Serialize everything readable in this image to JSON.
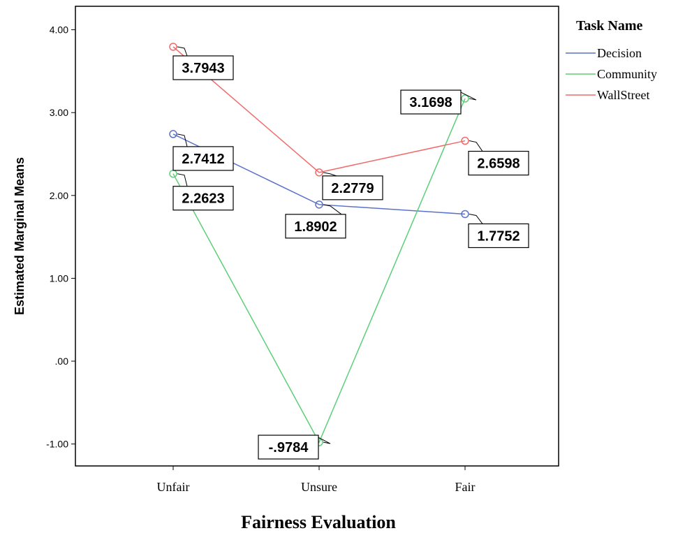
{
  "chart_data": {
    "type": "line",
    "title": "",
    "xlabel": "Fairness Evaluation",
    "ylabel": "Estimated Marginal Means",
    "categories": [
      "Unfair",
      "Unsure",
      "Fair"
    ],
    "ylim": [
      -1.3,
      4.3
    ],
    "yticks": [
      -1.0,
      0.0,
      1.0,
      2.0,
      3.0,
      4.0
    ],
    "ytick_labels": [
      "-1.00",
      ".00",
      "1.00",
      "2.00",
      "3.00",
      "4.00"
    ],
    "grid": false,
    "legend": {
      "title": "Task Name",
      "placement": "right"
    },
    "series": [
      {
        "name": "Decision",
        "color": "#5b72c9",
        "values": [
          2.7412,
          1.8902,
          1.7752
        ],
        "labels": [
          "2.7412",
          "1.8902",
          "1.7752"
        ]
      },
      {
        "name": "Community",
        "color": "#5ccf77",
        "values": [
          2.2623,
          -0.9784,
          3.1698
        ],
        "labels": [
          "2.2623",
          "-.9784",
          "3.1698"
        ]
      },
      {
        "name": "WallStreet",
        "color": "#f06a6a",
        "values": [
          3.7943,
          2.2779,
          2.6598
        ],
        "labels": [
          "3.7943",
          "2.2779",
          "2.6598"
        ]
      }
    ]
  }
}
